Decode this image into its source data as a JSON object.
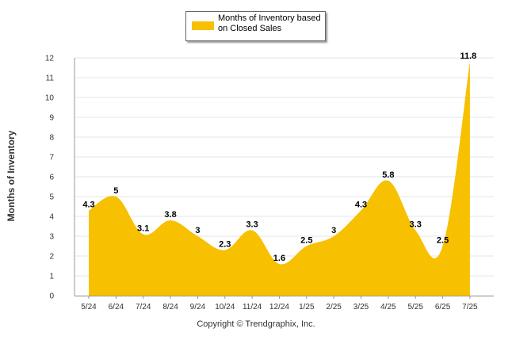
{
  "colors": {
    "fill": "#F7C000",
    "grid": "#e6e6e6",
    "axis": "#999999"
  },
  "legend": {
    "label": "Months of Inventory based on Closed Sales"
  },
  "footer": {
    "credit": "Copyright © Trendgraphix, Inc."
  },
  "chart_data": {
    "type": "area",
    "ylabel": "Months of Inventory",
    "ylim": [
      0,
      12
    ],
    "yticks": [
      0,
      1,
      2,
      3,
      4,
      5,
      6,
      7,
      8,
      9,
      10,
      11,
      12
    ],
    "categories": [
      "5/24",
      "6/24",
      "7/24",
      "8/24",
      "9/24",
      "10/24",
      "11/24",
      "12/24",
      "1/25",
      "2/25",
      "3/25",
      "4/25",
      "5/25",
      "6/25",
      "7/25"
    ],
    "series": [
      {
        "name": "Months of Inventory based on Closed Sales",
        "values": [
          4.3,
          5,
          3.1,
          3.8,
          3,
          2.3,
          3.3,
          1.6,
          2.5,
          3,
          4.3,
          5.8,
          3.3,
          2.5,
          11.8
        ],
        "labels": [
          "4.3",
          "5",
          "3.1",
          "3.8",
          "3",
          "2.3",
          "3.3",
          "1.6",
          "2.5",
          "3",
          "4.3",
          "5.8",
          "3.3",
          "2.5",
          "11.8"
        ]
      }
    ],
    "grid": true,
    "legend_position": "top-center"
  }
}
